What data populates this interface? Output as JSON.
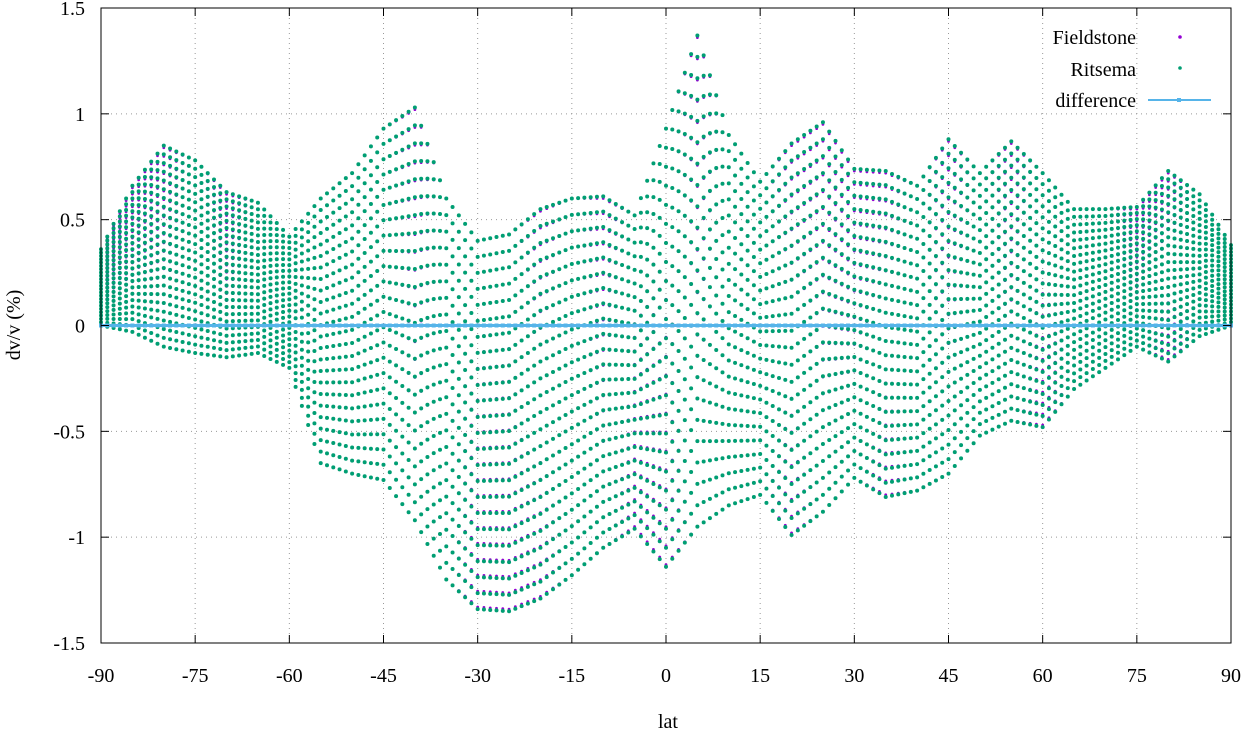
{
  "chart_data": {
    "type": "scatter",
    "title": "",
    "xlabel": "lat",
    "ylabel": "dv/v (%)",
    "xlim": [
      -90,
      90
    ],
    "ylim": [
      -1.5,
      1.5
    ],
    "xticks": [
      -90,
      -75,
      -60,
      -45,
      -30,
      -15,
      0,
      15,
      30,
      45,
      60,
      75,
      90
    ],
    "xtick_labels": [
      "-90",
      "-75",
      "-60",
      "-45",
      "-30",
      "-15",
      "0",
      "15",
      "30",
      "45",
      "60",
      "75",
      "90"
    ],
    "yticks": [
      -1.5,
      -1,
      -0.5,
      0,
      0.5,
      1,
      1.5
    ],
    "ytick_labels": [
      "-1.5",
      "-1",
      "-0.5",
      "0",
      "0.5",
      "1",
      "1.5"
    ],
    "grid": true,
    "legend_position": "top-right",
    "latitude_step": 1,
    "series": [
      {
        "name": "Fieldstone",
        "style": "points",
        "color": "#9400d3",
        "envelope_lat": [
          -90,
          -85,
          -80,
          -75,
          -70,
          -65,
          -60,
          -55,
          -50,
          -45,
          -40,
          -35,
          -30,
          -25,
          -20,
          -15,
          -10,
          -5,
          0,
          5,
          10,
          15,
          20,
          25,
          30,
          35,
          40,
          45,
          50,
          55,
          60,
          65,
          70,
          75,
          80,
          85,
          90
        ],
        "envelope_upper": [
          0.35,
          0.65,
          0.84,
          0.78,
          0.62,
          0.58,
          0.42,
          0.6,
          0.72,
          0.93,
          1.02,
          0.6,
          0.4,
          0.43,
          0.54,
          0.6,
          0.6,
          0.52,
          0.93,
          1.36,
          0.9,
          0.68,
          0.85,
          0.95,
          0.73,
          0.72,
          0.66,
          0.87,
          0.72,
          0.86,
          0.72,
          0.55,
          0.55,
          0.55,
          0.72,
          0.62,
          0.38
        ],
        "envelope_lower": [
          0.0,
          -0.03,
          -0.1,
          -0.13,
          -0.15,
          -0.13,
          -0.2,
          -0.65,
          -0.7,
          -0.73,
          -0.92,
          -1.2,
          -1.33,
          -1.34,
          -1.28,
          -1.18,
          -1.05,
          -0.95,
          -1.13,
          -0.95,
          -0.85,
          -0.8,
          -0.98,
          -0.88,
          -0.72,
          -0.8,
          -0.78,
          -0.7,
          -0.52,
          -0.45,
          -0.47,
          -0.3,
          -0.2,
          -0.1,
          -0.16,
          -0.05,
          0.0
        ],
        "values_per_latitude": 24
      },
      {
        "name": "Ritsema",
        "style": "points",
        "color": "#009e73",
        "envelope_lat": [
          -90,
          -85,
          -80,
          -75,
          -70,
          -65,
          -60,
          -55,
          -50,
          -45,
          -40,
          -35,
          -30,
          -25,
          -20,
          -15,
          -10,
          -5,
          0,
          5,
          10,
          15,
          20,
          25,
          30,
          35,
          40,
          45,
          50,
          55,
          60,
          65,
          70,
          75,
          80,
          85,
          90
        ],
        "envelope_upper": [
          0.36,
          0.66,
          0.85,
          0.78,
          0.63,
          0.58,
          0.42,
          0.6,
          0.72,
          0.93,
          1.03,
          0.6,
          0.4,
          0.43,
          0.55,
          0.6,
          0.61,
          0.52,
          0.93,
          1.37,
          0.9,
          0.68,
          0.86,
          0.96,
          0.74,
          0.73,
          0.66,
          0.88,
          0.72,
          0.87,
          0.72,
          0.55,
          0.55,
          0.56,
          0.73,
          0.62,
          0.38
        ],
        "envelope_lower": [
          0.0,
          -0.03,
          -0.1,
          -0.13,
          -0.15,
          -0.13,
          -0.2,
          -0.65,
          -0.7,
          -0.73,
          -0.92,
          -1.2,
          -1.34,
          -1.35,
          -1.29,
          -1.18,
          -1.05,
          -0.96,
          -1.14,
          -0.95,
          -0.85,
          -0.8,
          -0.99,
          -0.88,
          -0.72,
          -0.81,
          -0.78,
          -0.7,
          -0.52,
          -0.45,
          -0.48,
          -0.3,
          -0.2,
          -0.1,
          -0.17,
          -0.05,
          0.0
        ],
        "values_per_latitude": 24
      },
      {
        "name": "difference",
        "style": "linespoints",
        "color": "#56b4e9",
        "x": [
          -90,
          -60,
          -30,
          0,
          30,
          60,
          90
        ],
        "y": [
          0,
          0,
          0,
          0,
          0,
          0,
          0
        ]
      }
    ]
  }
}
